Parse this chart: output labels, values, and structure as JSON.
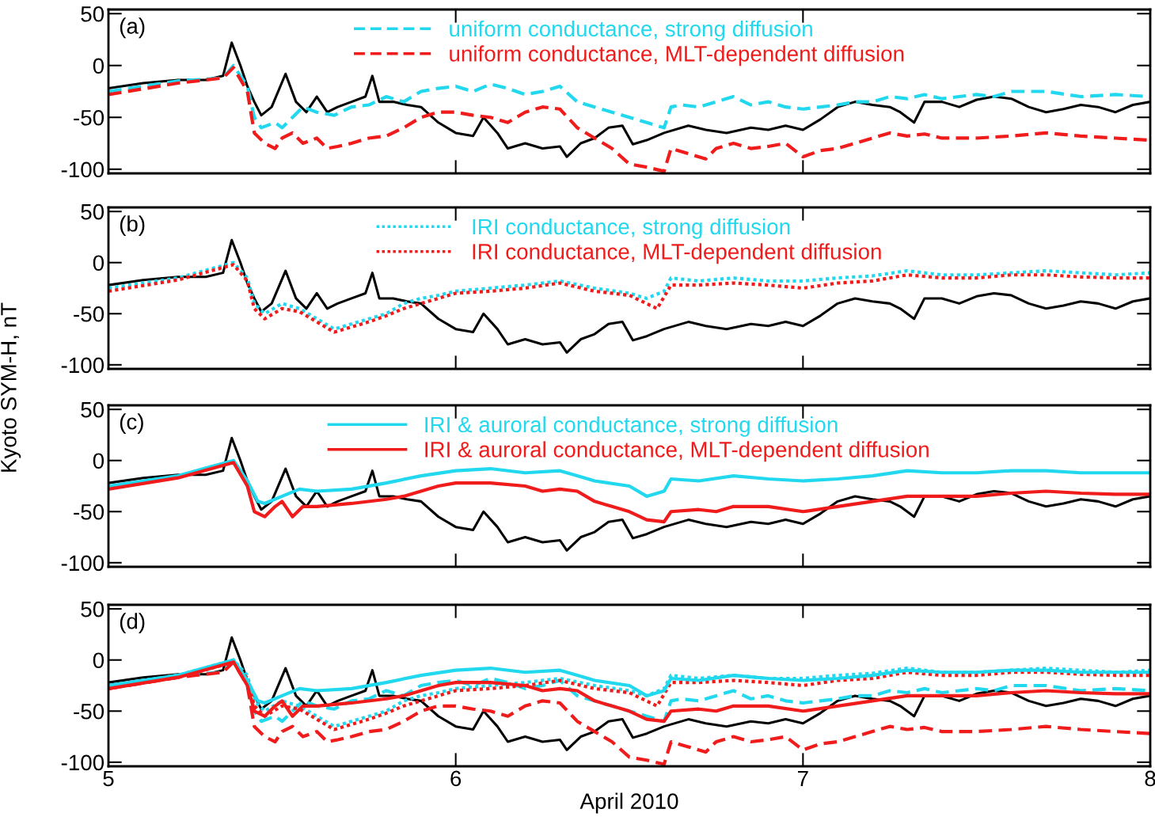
{
  "chart_data": [
    {
      "type": "line",
      "annotations": [
        "(a)"
      ],
      "xlim": [
        5,
        8
      ],
      "xticks": [
        5,
        6,
        7,
        8
      ],
      "ylim": [
        -104,
        54
      ],
      "yticks": [
        -100,
        -50,
        0,
        50
      ],
      "tick_labels": "y",
      "legend": "top",
      "grid": false,
      "series": [
        {
          "color": "#000000",
          "line_style": "solid",
          "x": [
            5.0,
            5.1,
            5.2,
            5.28,
            5.33,
            5.355,
            5.38,
            5.4,
            5.42,
            5.44,
            5.47,
            5.51,
            5.54,
            5.57,
            5.6,
            5.63,
            5.66,
            5.7,
            5.74,
            5.76,
            5.78,
            5.82,
            5.86,
            5.9,
            5.95,
            6.0,
            6.05,
            6.08,
            6.12,
            6.15,
            6.2,
            6.25,
            6.3,
            6.32,
            6.36,
            6.4,
            6.44,
            6.48,
            6.51,
            6.55,
            6.6,
            6.67,
            6.72,
            6.78,
            6.85,
            6.9,
            6.95,
            7.0,
            7.05,
            7.1,
            7.15,
            7.2,
            7.25,
            7.28,
            7.32,
            7.35,
            7.4,
            7.45,
            7.5,
            7.55,
            7.6,
            7.65,
            7.7,
            7.75,
            7.8,
            7.85,
            7.9,
            7.95,
            8.0
          ],
          "values": [
            -22,
            -17,
            -14,
            -14,
            -10,
            22,
            0,
            -20,
            -35,
            -48,
            -40,
            -8,
            -35,
            -45,
            -30,
            -45,
            -40,
            -35,
            -30,
            -10,
            -35,
            -35,
            -38,
            -40,
            -55,
            -65,
            -68,
            -50,
            -65,
            -80,
            -75,
            -80,
            -78,
            -88,
            -75,
            -70,
            -60,
            -58,
            -76,
            -72,
            -65,
            -58,
            -62,
            -65,
            -60,
            -62,
            -58,
            -62,
            -52,
            -40,
            -35,
            -38,
            -40,
            -45,
            -55,
            -35,
            -35,
            -40,
            -33,
            -30,
            -32,
            -40,
            -45,
            -42,
            -38,
            -40,
            -45,
            -38,
            -35
          ]
        },
        {
          "name": "uniform conductance, strong diffusion",
          "color": "#22d8ee",
          "line_style": "dashed",
          "x": [
            5.0,
            5.2,
            5.33,
            5.36,
            5.4,
            5.42,
            5.44,
            5.48,
            5.5,
            5.53,
            5.56,
            5.6,
            5.65,
            5.7,
            5.75,
            5.8,
            5.85,
            5.9,
            5.95,
            6.0,
            6.05,
            6.1,
            6.15,
            6.2,
            6.25,
            6.3,
            6.35,
            6.4,
            6.45,
            6.5,
            6.55,
            6.6,
            6.62,
            6.65,
            6.7,
            6.75,
            6.8,
            6.85,
            6.9,
            6.95,
            7.0,
            7.05,
            7.1,
            7.15,
            7.2,
            7.25,
            7.3,
            7.35,
            7.4,
            7.45,
            7.5,
            7.55,
            7.6,
            7.7,
            7.8,
            7.9,
            8.0
          ],
          "values": [
            -25,
            -15,
            -12,
            0,
            -20,
            -50,
            -60,
            -55,
            -60,
            -50,
            -40,
            -45,
            -48,
            -40,
            -38,
            -30,
            -35,
            -25,
            -22,
            -20,
            -25,
            -18,
            -22,
            -28,
            -25,
            -20,
            -35,
            -40,
            -45,
            -50,
            -55,
            -60,
            -40,
            -38,
            -40,
            -35,
            -30,
            -38,
            -35,
            -40,
            -42,
            -40,
            -38,
            -35,
            -35,
            -30,
            -32,
            -28,
            -32,
            -30,
            -28,
            -30,
            -25,
            -25,
            -30,
            -28,
            -30
          ]
        },
        {
          "name": "uniform conductance, MLT-dependent diffusion",
          "color": "#f01c1c",
          "line_style": "dashed",
          "x": [
            5.0,
            5.2,
            5.33,
            5.36,
            5.4,
            5.42,
            5.45,
            5.48,
            5.5,
            5.53,
            5.56,
            5.6,
            5.63,
            5.66,
            5.7,
            5.75,
            5.8,
            5.85,
            5.9,
            5.95,
            6.0,
            6.05,
            6.1,
            6.15,
            6.2,
            6.25,
            6.3,
            6.35,
            6.4,
            6.45,
            6.5,
            6.55,
            6.6,
            6.62,
            6.67,
            6.72,
            6.75,
            6.8,
            6.85,
            6.9,
            6.95,
            7.0,
            7.05,
            7.1,
            7.15,
            7.2,
            7.25,
            7.3,
            7.35,
            7.4,
            7.5,
            7.6,
            7.7,
            7.8,
            7.9,
            8.0
          ],
          "values": [
            -28,
            -17,
            -12,
            -2,
            -25,
            -65,
            -75,
            -80,
            -70,
            -65,
            -75,
            -70,
            -80,
            -78,
            -75,
            -70,
            -68,
            -60,
            -50,
            -45,
            -45,
            -48,
            -50,
            -55,
            -45,
            -40,
            -42,
            -60,
            -70,
            -80,
            -95,
            -98,
            -102,
            -80,
            -85,
            -90,
            -80,
            -75,
            -80,
            -78,
            -75,
            -88,
            -82,
            -80,
            -75,
            -70,
            -65,
            -68,
            -66,
            -70,
            -70,
            -68,
            -65,
            -68,
            -70,
            -72
          ]
        }
      ]
    },
    {
      "type": "line",
      "annotations": [
        "(b)"
      ],
      "ylabel": "Kyoto SYM-H, nT",
      "xlim": [
        5,
        8
      ],
      "xticks": [
        5,
        6,
        7,
        8
      ],
      "ylim": [
        -104,
        54
      ],
      "yticks": [
        -100,
        -50,
        0,
        50
      ],
      "tick_labels": "y",
      "legend": "top",
      "grid": false,
      "series": [
        {
          "color": "#000000",
          "line_style": "solid",
          "x": [
            5.0,
            5.1,
            5.2,
            5.28,
            5.33,
            5.355,
            5.38,
            5.4,
            5.42,
            5.44,
            5.47,
            5.51,
            5.54,
            5.57,
            5.6,
            5.63,
            5.66,
            5.7,
            5.74,
            5.76,
            5.78,
            5.82,
            5.86,
            5.9,
            5.95,
            6.0,
            6.05,
            6.08,
            6.12,
            6.15,
            6.2,
            6.25,
            6.3,
            6.32,
            6.36,
            6.4,
            6.44,
            6.48,
            6.51,
            6.55,
            6.6,
            6.67,
            6.72,
            6.78,
            6.85,
            6.9,
            6.95,
            7.0,
            7.05,
            7.1,
            7.15,
            7.2,
            7.25,
            7.28,
            7.32,
            7.35,
            7.4,
            7.45,
            7.5,
            7.55,
            7.6,
            7.65,
            7.7,
            7.75,
            7.8,
            7.85,
            7.9,
            7.95,
            8.0
          ],
          "values": [
            -22,
            -17,
            -14,
            -14,
            -10,
            22,
            0,
            -20,
            -35,
            -48,
            -40,
            -8,
            -35,
            -45,
            -30,
            -45,
            -40,
            -35,
            -30,
            -10,
            -35,
            -35,
            -38,
            -40,
            -55,
            -65,
            -68,
            -50,
            -65,
            -80,
            -75,
            -80,
            -78,
            -88,
            -75,
            -70,
            -60,
            -58,
            -76,
            -72,
            -65,
            -58,
            -62,
            -65,
            -60,
            -62,
            -58,
            -62,
            -52,
            -40,
            -35,
            -38,
            -40,
            -45,
            -55,
            -35,
            -35,
            -40,
            -33,
            -30,
            -32,
            -40,
            -45,
            -42,
            -38,
            -40,
            -45,
            -38,
            -35
          ]
        },
        {
          "name": "IRI conductance, strong diffusion",
          "color": "#22d8ee",
          "line_style": "dotted",
          "x": [
            5.0,
            5.2,
            5.36,
            5.4,
            5.42,
            5.45,
            5.5,
            5.55,
            5.6,
            5.65,
            5.7,
            5.75,
            5.8,
            5.85,
            5.9,
            5.95,
            6.0,
            6.1,
            6.2,
            6.3,
            6.4,
            6.5,
            6.55,
            6.6,
            6.62,
            6.7,
            6.8,
            6.9,
            7.0,
            7.1,
            7.2,
            7.3,
            7.4,
            7.5,
            7.6,
            7.7,
            7.8,
            7.9,
            8.0
          ],
          "values": [
            -25,
            -15,
            0,
            -15,
            -40,
            -50,
            -40,
            -45,
            -55,
            -65,
            -60,
            -55,
            -50,
            -40,
            -35,
            -32,
            -28,
            -25,
            -22,
            -18,
            -25,
            -30,
            -35,
            -28,
            -15,
            -18,
            -15,
            -18,
            -18,
            -15,
            -13,
            -8,
            -12,
            -12,
            -10,
            -8,
            -10,
            -12,
            -10
          ]
        },
        {
          "name": "IRI conductance, MLT-dependent diffusion",
          "color": "#f01c1c",
          "line_style": "dotted",
          "x": [
            5.0,
            5.2,
            5.36,
            5.4,
            5.42,
            5.45,
            5.5,
            5.55,
            5.6,
            5.65,
            5.7,
            5.75,
            5.8,
            5.85,
            5.9,
            5.95,
            6.0,
            6.1,
            6.2,
            6.3,
            6.4,
            6.5,
            6.58,
            6.62,
            6.7,
            6.8,
            6.9,
            7.0,
            7.1,
            7.2,
            7.3,
            7.4,
            7.5,
            7.6,
            7.7,
            7.8,
            7.9,
            8.0
          ],
          "values": [
            -28,
            -17,
            -2,
            -18,
            -45,
            -55,
            -45,
            -48,
            -58,
            -68,
            -63,
            -58,
            -52,
            -45,
            -40,
            -35,
            -30,
            -28,
            -25,
            -20,
            -28,
            -32,
            -45,
            -22,
            -22,
            -20,
            -22,
            -25,
            -20,
            -18,
            -12,
            -15,
            -15,
            -12,
            -12,
            -14,
            -15,
            -15
          ]
        }
      ]
    },
    {
      "type": "line",
      "annotations": [
        "(c)"
      ],
      "xlim": [
        5,
        8
      ],
      "xticks": [
        5,
        6,
        7,
        8
      ],
      "ylim": [
        -104,
        54
      ],
      "yticks": [
        -100,
        -50,
        0,
        50
      ],
      "tick_labels": "y",
      "legend": "top",
      "grid": false,
      "series": [
        {
          "color": "#000000",
          "line_style": "solid",
          "x": [
            5.0,
            5.1,
            5.2,
            5.28,
            5.33,
            5.355,
            5.38,
            5.4,
            5.42,
            5.44,
            5.47,
            5.51,
            5.54,
            5.57,
            5.6,
            5.63,
            5.66,
            5.7,
            5.74,
            5.76,
            5.78,
            5.82,
            5.86,
            5.9,
            5.95,
            6.0,
            6.05,
            6.08,
            6.12,
            6.15,
            6.2,
            6.25,
            6.3,
            6.32,
            6.36,
            6.4,
            6.44,
            6.48,
            6.51,
            6.55,
            6.6,
            6.67,
            6.72,
            6.78,
            6.85,
            6.9,
            6.95,
            7.0,
            7.05,
            7.1,
            7.15,
            7.2,
            7.25,
            7.28,
            7.32,
            7.35,
            7.4,
            7.45,
            7.5,
            7.55,
            7.6,
            7.65,
            7.7,
            7.75,
            7.8,
            7.85,
            7.9,
            7.95,
            8.0
          ],
          "values": [
            -22,
            -17,
            -14,
            -14,
            -10,
            22,
            0,
            -20,
            -35,
            -48,
            -40,
            -8,
            -35,
            -45,
            -30,
            -45,
            -40,
            -35,
            -30,
            -10,
            -35,
            -35,
            -38,
            -40,
            -55,
            -65,
            -68,
            -50,
            -65,
            -80,
            -75,
            -80,
            -78,
            -88,
            -75,
            -70,
            -60,
            -58,
            -76,
            -72,
            -65,
            -58,
            -62,
            -65,
            -60,
            -62,
            -58,
            -62,
            -52,
            -40,
            -35,
            -38,
            -40,
            -45,
            -55,
            -35,
            -35,
            -40,
            -33,
            -30,
            -32,
            -40,
            -45,
            -42,
            -38,
            -40,
            -45,
            -38,
            -35
          ]
        },
        {
          "name": "IRI & auroral conductance, strong diffusion",
          "color": "#22d8ee",
          "line_style": "solid",
          "x": [
            5.0,
            5.2,
            5.36,
            5.4,
            5.43,
            5.45,
            5.5,
            5.55,
            5.6,
            5.7,
            5.8,
            5.9,
            6.0,
            6.1,
            6.2,
            6.3,
            6.35,
            6.4,
            6.5,
            6.55,
            6.6,
            6.62,
            6.7,
            6.8,
            6.9,
            7.0,
            7.1,
            7.2,
            7.3,
            7.4,
            7.5,
            7.6,
            7.7,
            7.8,
            7.9,
            8.0
          ],
          "values": [
            -25,
            -15,
            0,
            -20,
            -40,
            -42,
            -35,
            -28,
            -30,
            -28,
            -22,
            -15,
            -10,
            -8,
            -12,
            -10,
            -15,
            -20,
            -25,
            -35,
            -30,
            -18,
            -20,
            -15,
            -18,
            -20,
            -18,
            -15,
            -10,
            -12,
            -12,
            -10,
            -10,
            -12,
            -12,
            -12
          ]
        },
        {
          "name": "IRI & auroral conductance, MLT-dependent diffusion",
          "color": "#f01c1c",
          "line_style": "solid",
          "x": [
            5.0,
            5.2,
            5.36,
            5.4,
            5.42,
            5.45,
            5.48,
            5.5,
            5.53,
            5.56,
            5.6,
            5.7,
            5.8,
            5.85,
            5.9,
            5.95,
            6.0,
            6.1,
            6.2,
            6.25,
            6.3,
            6.35,
            6.4,
            6.45,
            6.5,
            6.55,
            6.6,
            6.62,
            6.7,
            6.75,
            6.8,
            6.9,
            7.0,
            7.1,
            7.2,
            7.3,
            7.4,
            7.5,
            7.6,
            7.7,
            7.8,
            7.9,
            8.0
          ],
          "values": [
            -28,
            -17,
            -2,
            -25,
            -50,
            -55,
            -45,
            -40,
            -55,
            -45,
            -45,
            -42,
            -38,
            -35,
            -30,
            -25,
            -22,
            -22,
            -25,
            -30,
            -28,
            -30,
            -40,
            -45,
            -50,
            -58,
            -60,
            -50,
            -48,
            -50,
            -45,
            -45,
            -50,
            -45,
            -40,
            -35,
            -35,
            -35,
            -32,
            -30,
            -32,
            -33,
            -33
          ]
        }
      ]
    },
    {
      "type": "line",
      "annotations": [
        "(d)"
      ],
      "xlabel": "April 2010",
      "xlim": [
        5,
        8
      ],
      "xticks": [
        5,
        6,
        7,
        8
      ],
      "ylim": [
        -104,
        54
      ],
      "yticks": [
        -100,
        -50,
        0,
        50
      ],
      "grid": false,
      "series": [
        {
          "color": "#000000",
          "line_style": "solid",
          "x": [
            5.0,
            5.1,
            5.2,
            5.28,
            5.33,
            5.355,
            5.38,
            5.4,
            5.42,
            5.44,
            5.47,
            5.51,
            5.54,
            5.57,
            5.6,
            5.63,
            5.66,
            5.7,
            5.74,
            5.76,
            5.78,
            5.82,
            5.86,
            5.9,
            5.95,
            6.0,
            6.05,
            6.08,
            6.12,
            6.15,
            6.2,
            6.25,
            6.3,
            6.32,
            6.36,
            6.4,
            6.44,
            6.48,
            6.51,
            6.55,
            6.6,
            6.67,
            6.72,
            6.78,
            6.85,
            6.9,
            6.95,
            7.0,
            7.05,
            7.1,
            7.15,
            7.2,
            7.25,
            7.28,
            7.32,
            7.35,
            7.4,
            7.45,
            7.5,
            7.55,
            7.6,
            7.65,
            7.7,
            7.75,
            7.8,
            7.85,
            7.9,
            7.95,
            8.0
          ],
          "values": [
            -22,
            -17,
            -14,
            -14,
            -10,
            22,
            0,
            -20,
            -35,
            -48,
            -40,
            -8,
            -35,
            -45,
            -30,
            -45,
            -40,
            -35,
            -30,
            -10,
            -35,
            -35,
            -38,
            -40,
            -55,
            -65,
            -68,
            -50,
            -65,
            -80,
            -75,
            -80,
            -78,
            -88,
            -75,
            -70,
            -60,
            -58,
            -76,
            -72,
            -65,
            -58,
            -62,
            -65,
            -60,
            -62,
            -58,
            -62,
            -52,
            -40,
            -35,
            -38,
            -40,
            -45,
            -55,
            -35,
            -35,
            -40,
            -33,
            -30,
            -32,
            -40,
            -45,
            -42,
            -38,
            -40,
            -45,
            -38,
            -35
          ]
        },
        {
          "color": "#22d8ee",
          "line_style": "dashed",
          "x": [
            5.0,
            5.2,
            5.33,
            5.36,
            5.4,
            5.42,
            5.44,
            5.48,
            5.5,
            5.53,
            5.56,
            5.6,
            5.65,
            5.7,
            5.75,
            5.8,
            5.85,
            5.9,
            5.95,
            6.0,
            6.05,
            6.1,
            6.15,
            6.2,
            6.25,
            6.3,
            6.35,
            6.4,
            6.45,
            6.5,
            6.55,
            6.6,
            6.62,
            6.65,
            6.7,
            6.75,
            6.8,
            6.85,
            6.9,
            6.95,
            7.0,
            7.05,
            7.1,
            7.15,
            7.2,
            7.25,
            7.3,
            7.35,
            7.4,
            7.45,
            7.5,
            7.55,
            7.6,
            7.7,
            7.8,
            7.9,
            8.0
          ],
          "values": [
            -25,
            -15,
            -12,
            0,
            -20,
            -50,
            -60,
            -55,
            -60,
            -50,
            -40,
            -45,
            -48,
            -40,
            -38,
            -30,
            -35,
            -25,
            -22,
            -20,
            -25,
            -18,
            -22,
            -28,
            -25,
            -20,
            -35,
            -40,
            -45,
            -50,
            -55,
            -60,
            -40,
            -38,
            -40,
            -35,
            -30,
            -38,
            -35,
            -40,
            -42,
            -40,
            -38,
            -35,
            -35,
            -30,
            -32,
            -28,
            -32,
            -30,
            -28,
            -30,
            -25,
            -25,
            -30,
            -28,
            -30
          ]
        },
        {
          "color": "#f01c1c",
          "line_style": "dashed",
          "x": [
            5.0,
            5.2,
            5.33,
            5.36,
            5.4,
            5.42,
            5.45,
            5.48,
            5.5,
            5.53,
            5.56,
            5.6,
            5.63,
            5.66,
            5.7,
            5.75,
            5.8,
            5.85,
            5.9,
            5.95,
            6.0,
            6.05,
            6.1,
            6.15,
            6.2,
            6.25,
            6.3,
            6.35,
            6.4,
            6.45,
            6.5,
            6.55,
            6.6,
            6.62,
            6.67,
            6.72,
            6.75,
            6.8,
            6.85,
            6.9,
            6.95,
            7.0,
            7.05,
            7.1,
            7.15,
            7.2,
            7.25,
            7.3,
            7.35,
            7.4,
            7.5,
            7.6,
            7.7,
            7.8,
            7.9,
            8.0
          ],
          "values": [
            -28,
            -17,
            -12,
            -2,
            -25,
            -65,
            -75,
            -80,
            -70,
            -65,
            -75,
            -70,
            -80,
            -78,
            -75,
            -70,
            -68,
            -60,
            -50,
            -45,
            -45,
            -48,
            -50,
            -55,
            -45,
            -40,
            -42,
            -60,
            -70,
            -80,
            -95,
            -98,
            -102,
            -80,
            -85,
            -90,
            -80,
            -75,
            -80,
            -78,
            -75,
            -88,
            -82,
            -80,
            -75,
            -70,
            -65,
            -68,
            -66,
            -70,
            -70,
            -68,
            -65,
            -68,
            -70,
            -72
          ]
        },
        {
          "color": "#22d8ee",
          "line_style": "dotted",
          "x": [
            5.0,
            5.2,
            5.36,
            5.4,
            5.42,
            5.45,
            5.5,
            5.55,
            5.6,
            5.65,
            5.7,
            5.75,
            5.8,
            5.85,
            5.9,
            5.95,
            6.0,
            6.1,
            6.2,
            6.3,
            6.4,
            6.5,
            6.55,
            6.6,
            6.62,
            6.7,
            6.8,
            6.9,
            7.0,
            7.1,
            7.2,
            7.3,
            7.4,
            7.5,
            7.6,
            7.7,
            7.8,
            7.9,
            8.0
          ],
          "values": [
            -25,
            -15,
            0,
            -15,
            -40,
            -50,
            -40,
            -45,
            -55,
            -65,
            -60,
            -55,
            -50,
            -40,
            -35,
            -32,
            -28,
            -25,
            -22,
            -18,
            -25,
            -30,
            -35,
            -28,
            -15,
            -18,
            -15,
            -18,
            -18,
            -15,
            -13,
            -8,
            -12,
            -12,
            -10,
            -8,
            -10,
            -12,
            -10
          ]
        },
        {
          "color": "#f01c1c",
          "line_style": "dotted",
          "x": [
            5.0,
            5.2,
            5.36,
            5.4,
            5.42,
            5.45,
            5.5,
            5.55,
            5.6,
            5.65,
            5.7,
            5.75,
            5.8,
            5.85,
            5.9,
            5.95,
            6.0,
            6.1,
            6.2,
            6.3,
            6.4,
            6.5,
            6.58,
            6.62,
            6.7,
            6.8,
            6.9,
            7.0,
            7.1,
            7.2,
            7.3,
            7.4,
            7.5,
            7.6,
            7.7,
            7.8,
            7.9,
            8.0
          ],
          "values": [
            -28,
            -17,
            -2,
            -18,
            -45,
            -55,
            -45,
            -48,
            -58,
            -68,
            -63,
            -58,
            -52,
            -45,
            -40,
            -35,
            -30,
            -28,
            -25,
            -20,
            -28,
            -32,
            -45,
            -22,
            -22,
            -20,
            -22,
            -25,
            -20,
            -18,
            -12,
            -15,
            -15,
            -12,
            -12,
            -14,
            -15,
            -15
          ]
        },
        {
          "color": "#22d8ee",
          "line_style": "solid",
          "x": [
            5.0,
            5.2,
            5.36,
            5.4,
            5.43,
            5.45,
            5.5,
            5.55,
            5.6,
            5.7,
            5.8,
            5.9,
            6.0,
            6.1,
            6.2,
            6.3,
            6.35,
            6.4,
            6.5,
            6.55,
            6.6,
            6.62,
            6.7,
            6.8,
            6.9,
            7.0,
            7.1,
            7.2,
            7.3,
            7.4,
            7.5,
            7.6,
            7.7,
            7.8,
            7.9,
            8.0
          ],
          "values": [
            -25,
            -15,
            0,
            -20,
            -40,
            -42,
            -35,
            -28,
            -30,
            -28,
            -22,
            -15,
            -10,
            -8,
            -12,
            -10,
            -15,
            -20,
            -25,
            -35,
            -30,
            -18,
            -20,
            -15,
            -18,
            -20,
            -18,
            -15,
            -10,
            -12,
            -12,
            -10,
            -10,
            -12,
            -12,
            -12
          ]
        },
        {
          "color": "#f01c1c",
          "line_style": "solid",
          "x": [
            5.0,
            5.2,
            5.36,
            5.4,
            5.42,
            5.45,
            5.48,
            5.5,
            5.53,
            5.56,
            5.6,
            5.7,
            5.8,
            5.85,
            5.9,
            5.95,
            6.0,
            6.1,
            6.2,
            6.25,
            6.3,
            6.35,
            6.4,
            6.45,
            6.5,
            6.55,
            6.6,
            6.62,
            6.7,
            6.75,
            6.8,
            6.9,
            7.0,
            7.1,
            7.2,
            7.3,
            7.4,
            7.5,
            7.6,
            7.7,
            7.8,
            7.9,
            8.0
          ],
          "values": [
            -28,
            -17,
            -2,
            -25,
            -50,
            -55,
            -45,
            -40,
            -55,
            -45,
            -45,
            -42,
            -38,
            -35,
            -30,
            -25,
            -22,
            -22,
            -25,
            -30,
            -28,
            -30,
            -40,
            -45,
            -50,
            -58,
            -60,
            -50,
            -48,
            -50,
            -45,
            -45,
            -50,
            -45,
            -40,
            -35,
            -35,
            -35,
            -32,
            -30,
            -32,
            -33,
            -33
          ]
        }
      ]
    }
  ]
}
